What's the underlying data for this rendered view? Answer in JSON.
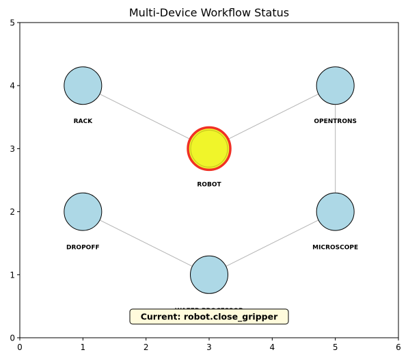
{
  "chart_data": {
    "type": "scatter",
    "title": "Multi-Device Workflow Status",
    "xlabel": "",
    "ylabel": "",
    "xlim": [
      0,
      6
    ],
    "ylim": [
      0,
      5
    ],
    "xticks": [
      "0",
      "1",
      "2",
      "3",
      "4",
      "5",
      "6"
    ],
    "yticks": [
      "0",
      "1",
      "2",
      "3",
      "4",
      "5"
    ],
    "grid": false,
    "nodes": [
      {
        "id": "rack",
        "label": "RACK",
        "x": 1,
        "y": 4,
        "active": false
      },
      {
        "id": "robot",
        "label": "ROBOT",
        "x": 3,
        "y": 3,
        "active": true
      },
      {
        "id": "opentrons",
        "label": "OPENTRONS",
        "x": 5,
        "y": 4,
        "active": false
      },
      {
        "id": "microscope",
        "label": "MICROSCOPE",
        "x": 5,
        "y": 2,
        "active": false
      },
      {
        "id": "wafer",
        "label": "WAFER PROCESSOR",
        "x": 3,
        "y": 1,
        "active": false
      },
      {
        "id": "dropoff",
        "label": "DROPOFF",
        "x": 1,
        "y": 2,
        "active": false
      }
    ],
    "edges": [
      {
        "from": "rack",
        "to": "robot"
      },
      {
        "from": "robot",
        "to": "opentrons"
      },
      {
        "from": "opentrons",
        "to": "microscope"
      },
      {
        "from": "microscope",
        "to": "wafer"
      },
      {
        "from": "wafer",
        "to": "dropoff"
      }
    ],
    "status_text": "Current: robot.close_gripper",
    "colors": {
      "node_fill": "#add8e6",
      "node_edge": "#000000",
      "active_fill": "#f0f52a",
      "active_inner": "#c8c820",
      "active_edge": "#f03025",
      "edge_line": "#b4b4b4",
      "status_box": "#fffbdc"
    }
  }
}
